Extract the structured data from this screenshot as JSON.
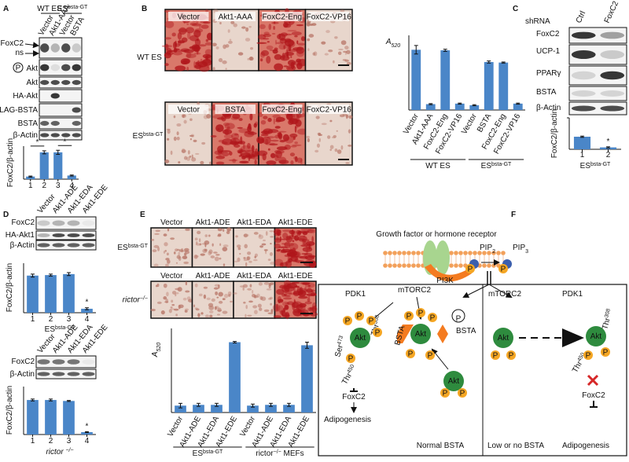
{
  "chart_data": [
    {
      "type": "bar",
      "y_label": "FoxC2/β-actin",
      "categories": [
        "1",
        "2",
        "3",
        "4"
      ],
      "values": [
        0.25,
        2.6,
        2.6,
        0.35
      ],
      "errors": [
        0.05,
        0.15,
        0.2,
        0.05
      ],
      "color": "#4a86c8",
      "ylim": [
        0,
        3.2
      ],
      "annotations": [
        "*",
        "*"
      ]
    },
    {
      "type": "bar",
      "y_label": {
        "t": "A",
        "sub": "520"
      },
      "categories": [
        "Vector",
        "Akt1-AAA",
        "FoxC2-Eng",
        "FoxC2-VP16",
        "Vector",
        "BSTA",
        "FoxC2-Eng",
        "FoxC2-VP16"
      ],
      "values": [
        1.13,
        0.11,
        1.12,
        0.12,
        0.09,
        0.9,
        0.89,
        0.12
      ],
      "errors": [
        0.08,
        0.01,
        0.02,
        0.01,
        0.01,
        0.02,
        0.01,
        0.01
      ],
      "color": "#4a86c8",
      "ylim": [
        0,
        1.4
      ],
      "group_labels": [
        "WT ES",
        {
          "t": "ES",
          "sup": "bsta-GT"
        }
      ]
    },
    {
      "type": "bar",
      "y_label": "FoxC2/β-actin",
      "categories": [
        "1",
        "2"
      ],
      "values": [
        0.4,
        0.06
      ],
      "errors": [
        0.02,
        0.02
      ],
      "color": "#4a86c8",
      "ylim": [
        0,
        1
      ],
      "yticks": [
        1
      ],
      "x_label": {
        "t": "ES",
        "sup": "bsta-GT"
      },
      "annotations": [
        "*"
      ]
    },
    {
      "type": "bar",
      "y_label": "FoxC2/β-actin",
      "categories": [
        "1",
        "2",
        "3",
        "4"
      ],
      "values": [
        0.75,
        0.76,
        0.78,
        0.08
      ],
      "errors": [
        0.03,
        0.02,
        0.03,
        0.02
      ],
      "color": "#4a86c8",
      "ylim": [
        0,
        1
      ],
      "x_label": {
        "t": "ES",
        "sup": "bsta-GT"
      },
      "annotations": [
        "*"
      ]
    },
    {
      "type": "bar",
      "y_label": "FoxC2/β-actin",
      "categories": [
        "1",
        "2",
        "3",
        "4"
      ],
      "values": [
        0.72,
        0.72,
        0.7,
        0.05
      ],
      "errors": [
        0.02,
        0.02,
        0.01,
        0.01
      ],
      "color": "#4a86c8",
      "ylim": [
        0,
        1
      ],
      "x_label": {
        "t": "rictor ",
        "sup": "−/−"
      },
      "annotations": [
        "*"
      ]
    },
    {
      "type": "bar",
      "y_label": {
        "t": "A",
        "sub": "520"
      },
      "categories": [
        "Vector",
        "Akt1-ADE",
        "Akt1-EDA",
        "Akt1-EDE",
        "Vector",
        "Akt1-ADE",
        "Akt1-EDA",
        "Akt1-EDE"
      ],
      "values": [
        0.09,
        0.1,
        0.1,
        0.92,
        0.09,
        0.1,
        0.1,
        0.88
      ],
      "errors": [
        0.03,
        0.02,
        0.02,
        0.01,
        0.02,
        0.02,
        0.02,
        0.04
      ],
      "color": "#4a86c8",
      "ylim": [
        0,
        1.1
      ],
      "group_labels": [
        {
          "t": "ES",
          "sup": "bsta-GT"
        },
        {
          "t": "rictor",
          "sup": "−/−",
          "t2": " MEFs"
        }
      ]
    }
  ],
  "figure": {
    "panel_labels": [
      "A",
      "B",
      "C",
      "D",
      "E",
      "F"
    ],
    "A": {
      "groups": [
        "WT ES",
        {
          "t": "ES",
          "sup": "bsta-GT"
        }
      ],
      "lanes": [
        "Vector",
        "Akt1-AAA",
        "Vector",
        "BSTA"
      ],
      "rows": [
        "FoxC2",
        "ns",
        "P",
        "Akt",
        "Akt",
        "HA-Akt",
        "FLAG-BSTA",
        "BSTA",
        "β-Actin"
      ]
    },
    "B": {
      "rows": [
        "WT ES",
        {
          "t": "ES",
          "sup": "bsta-GT"
        }
      ],
      "image_labels": [
        [
          "Vector",
          "Akt1-AAA",
          "FoxC2-Eng",
          "FoxC2-VP16"
        ],
        [
          "Vector",
          "BSTA",
          "FoxC2-Eng",
          "FoxC2-VP16"
        ]
      ]
    },
    "C": {
      "header": "shRNA",
      "lanes": [
        "Ctrl",
        "FoxC2"
      ],
      "rows": [
        "FoxC2",
        "UCP-1",
        "PPARγ",
        "BSTA",
        "β-Actin"
      ]
    },
    "D": {
      "lanes_top": [
        "Vector",
        "Akt1-ADE",
        "Akt1-EDA",
        "Akt1-EDE"
      ],
      "rows_top": [
        "FoxC2",
        "HA-Akt1",
        "β-Actin"
      ],
      "lanes_bottom": [
        "Vector",
        "Akt1-ADE",
        "Akt1-EDA",
        "Akt1-EDE"
      ],
      "rows_bottom": [
        "FoxC2",
        "β-Actin"
      ]
    },
    "E": {
      "rows": [
        {
          "t": "ES",
          "sup": "bsta-GT"
        },
        {
          "t": "rictor",
          "sup": "−/−"
        }
      ],
      "image_labels": [
        [
          "Vector",
          "Akt1-ADE",
          "Akt1-EDA",
          "Akt1-EDE"
        ],
        [
          "Vector",
          "Akt1-ADE",
          "Akt1-EDA",
          "Akt1-EDE"
        ]
      ]
    },
    "F": {
      "receptor": "Growth factor or hormone receptor",
      "pip2": {
        "t": "PIP",
        "sub": "2"
      },
      "pip3": {
        "t": "PIP",
        "sub": "3"
      },
      "pi3k": "PI3K",
      "left": {
        "pdk1": "PDK1",
        "mtorc2": "mTORC2",
        "ser": {
          "t": "Ser",
          "sup": "473"
        },
        "thr308": {
          "t": "Thr",
          "sup": "308"
        },
        "thr450": {
          "t": "Thr",
          "sup": "450"
        },
        "foxc2": "FoxC2",
        "adipogenesis": "Adipogenesis",
        "bsta_rot": "BSTA",
        "bsta": "BSTA",
        "caption": "Normal BSTA",
        "akt": [
          "Akt",
          "Akt",
          "Akt"
        ]
      },
      "right": {
        "mtorc2": "mTORC2",
        "pdk1": "PDK1",
        "akt": [
          "Akt",
          "Akt"
        ],
        "thr450": {
          "t": "Thr",
          "sup": "450"
        },
        "thr308": {
          "t": "Thr",
          "sup": "308"
        },
        "foxc2": "FoxC2",
        "caption": "Low or no BSTA",
        "adipogenesis": "Adipogenesis"
      },
      "phospho": [
        "P",
        "P",
        "P",
        "P",
        "P",
        "P",
        "P",
        "P",
        "P",
        "P",
        "P",
        "P",
        "P",
        "P",
        "P",
        "P",
        "P",
        "P",
        "P"
      ]
    }
  }
}
